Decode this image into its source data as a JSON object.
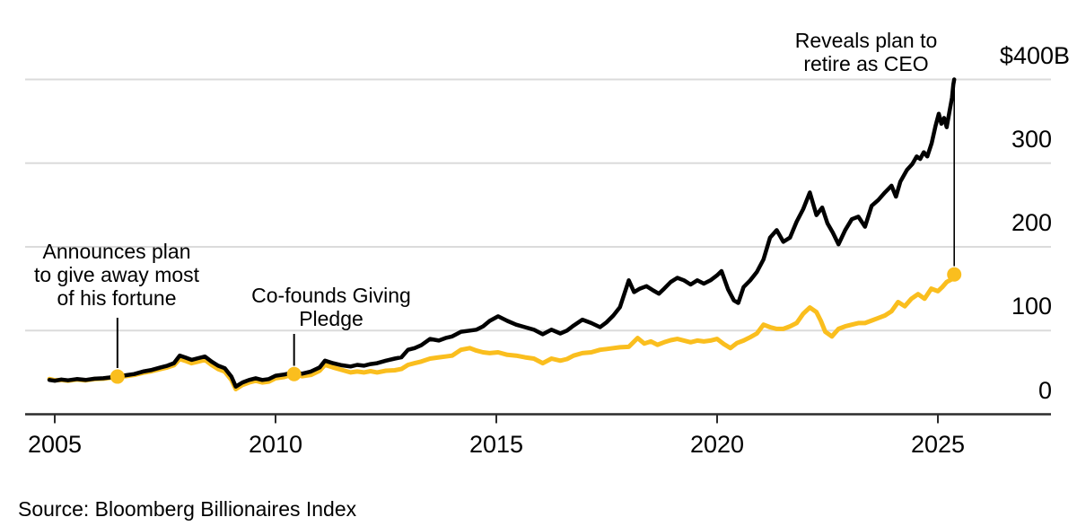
{
  "chart_data": {
    "type": "line",
    "title": "",
    "source": "Source: Bloomberg Billionaires Index",
    "colors": {
      "gold": "#FABE1E",
      "black": "#000000",
      "grid": "#DBDBDB",
      "axis": "#2B2B2B"
    },
    "x_axis": {
      "ticks": [
        2005,
        2010,
        2015,
        2020,
        2025
      ],
      "labels": [
        "2005",
        "2010",
        "2015",
        "2020",
        "2025"
      ],
      "range": [
        2004.3,
        2027.6
      ]
    },
    "y_axis": {
      "unit": "$B",
      "ticks": [
        0,
        100,
        200,
        300,
        400
      ],
      "labels": [
        "0",
        "100",
        "200",
        "300",
        "$400B"
      ],
      "range": [
        0,
        400
      ]
    },
    "series": [
      {
        "id": "gold",
        "color": "#FABE1E",
        "points": [
          [
            2004.88,
            42
          ],
          [
            2005.0,
            40.5
          ],
          [
            2005.15,
            41
          ],
          [
            2005.3,
            40
          ],
          [
            2005.5,
            41.5
          ],
          [
            2005.7,
            40.5
          ],
          [
            2005.9,
            42
          ],
          [
            2006.1,
            42.5
          ],
          [
            2006.25,
            43.5
          ],
          [
            2006.42,
            45
          ],
          [
            2006.6,
            45.5
          ],
          [
            2006.8,
            47
          ],
          [
            2007.0,
            49.5
          ],
          [
            2007.2,
            51.5
          ],
          [
            2007.4,
            54
          ],
          [
            2007.55,
            56
          ],
          [
            2007.7,
            58.5
          ],
          [
            2007.83,
            66
          ],
          [
            2007.95,
            64
          ],
          [
            2008.1,
            61
          ],
          [
            2008.25,
            63
          ],
          [
            2008.4,
            65
          ],
          [
            2008.55,
            59
          ],
          [
            2008.7,
            54
          ],
          [
            2008.85,
            51
          ],
          [
            2009.0,
            41
          ],
          [
            2009.1,
            30
          ],
          [
            2009.25,
            35
          ],
          [
            2009.4,
            38
          ],
          [
            2009.55,
            40
          ],
          [
            2009.7,
            38
          ],
          [
            2009.85,
            39
          ],
          [
            2010.0,
            43
          ],
          [
            2010.2,
            44.5
          ],
          [
            2010.42,
            48
          ],
          [
            2010.6,
            45.5
          ],
          [
            2010.8,
            47
          ],
          [
            2011.0,
            52
          ],
          [
            2011.12,
            59
          ],
          [
            2011.3,
            56
          ],
          [
            2011.5,
            53
          ],
          [
            2011.7,
            50
          ],
          [
            2011.85,
            51
          ],
          [
            2012.0,
            50
          ],
          [
            2012.15,
            51.5
          ],
          [
            2012.3,
            50
          ],
          [
            2012.5,
            52
          ],
          [
            2012.7,
            52.5
          ],
          [
            2012.85,
            54
          ],
          [
            2013.0,
            59
          ],
          [
            2013.15,
            61
          ],
          [
            2013.3,
            63
          ],
          [
            2013.5,
            66.5
          ],
          [
            2013.7,
            68
          ],
          [
            2013.85,
            69
          ],
          [
            2014.0,
            70
          ],
          [
            2014.2,
            77
          ],
          [
            2014.4,
            79
          ],
          [
            2014.55,
            76
          ],
          [
            2014.7,
            74
          ],
          [
            2014.85,
            73
          ],
          [
            2015.04,
            74
          ],
          [
            2015.25,
            71
          ],
          [
            2015.45,
            70
          ],
          [
            2015.65,
            68
          ],
          [
            2015.85,
            66.5
          ],
          [
            2016.05,
            61
          ],
          [
            2016.25,
            66.5
          ],
          [
            2016.45,
            64
          ],
          [
            2016.6,
            66
          ],
          [
            2016.75,
            70
          ],
          [
            2016.95,
            73
          ],
          [
            2017.15,
            74
          ],
          [
            2017.35,
            77
          ],
          [
            2017.5,
            78
          ],
          [
            2017.65,
            79
          ],
          [
            2017.8,
            80
          ],
          [
            2018.0,
            80.5
          ],
          [
            2018.2,
            91
          ],
          [
            2018.35,
            84.5
          ],
          [
            2018.5,
            87
          ],
          [
            2018.65,
            83
          ],
          [
            2018.8,
            86
          ],
          [
            2018.95,
            88.5
          ],
          [
            2019.1,
            90
          ],
          [
            2019.25,
            88
          ],
          [
            2019.4,
            86
          ],
          [
            2019.55,
            88
          ],
          [
            2019.7,
            87
          ],
          [
            2019.85,
            88
          ],
          [
            2020.0,
            90
          ],
          [
            2020.15,
            84
          ],
          [
            2020.3,
            79
          ],
          [
            2020.45,
            85
          ],
          [
            2020.6,
            88
          ],
          [
            2020.75,
            92
          ],
          [
            2020.9,
            96.5
          ],
          [
            2021.05,
            107
          ],
          [
            2021.2,
            104
          ],
          [
            2021.35,
            102
          ],
          [
            2021.5,
            102
          ],
          [
            2021.65,
            105
          ],
          [
            2021.8,
            109
          ],
          [
            2021.95,
            120
          ],
          [
            2022.1,
            127.5
          ],
          [
            2022.25,
            122
          ],
          [
            2022.35,
            111.5
          ],
          [
            2022.45,
            98.5
          ],
          [
            2022.6,
            93
          ],
          [
            2022.75,
            102
          ],
          [
            2022.9,
            105
          ],
          [
            2023.05,
            107
          ],
          [
            2023.2,
            109
          ],
          [
            2023.35,
            109
          ],
          [
            2023.5,
            112
          ],
          [
            2023.65,
            115
          ],
          [
            2023.8,
            118
          ],
          [
            2023.95,
            123
          ],
          [
            2024.1,
            134
          ],
          [
            2024.25,
            129
          ],
          [
            2024.4,
            138
          ],
          [
            2024.55,
            143.5
          ],
          [
            2024.7,
            138
          ],
          [
            2024.85,
            150
          ],
          [
            2025.0,
            147
          ],
          [
            2025.1,
            152
          ],
          [
            2025.2,
            158
          ],
          [
            2025.3,
            161
          ],
          [
            2025.37,
            167
          ]
        ]
      },
      {
        "id": "black",
        "color": "#000000",
        "points": [
          [
            2004.88,
            41
          ],
          [
            2005.0,
            40
          ],
          [
            2005.15,
            41.5
          ],
          [
            2005.3,
            40.5
          ],
          [
            2005.5,
            42
          ],
          [
            2005.7,
            41
          ],
          [
            2005.9,
            42.5
          ],
          [
            2006.1,
            43
          ],
          [
            2006.25,
            44
          ],
          [
            2006.42,
            45.5
          ],
          [
            2006.6,
            46.5
          ],
          [
            2006.8,
            48
          ],
          [
            2007.0,
            51
          ],
          [
            2007.2,
            53
          ],
          [
            2007.4,
            56
          ],
          [
            2007.55,
            58
          ],
          [
            2007.7,
            61
          ],
          [
            2007.83,
            70
          ],
          [
            2007.95,
            68
          ],
          [
            2008.1,
            65
          ],
          [
            2008.25,
            67
          ],
          [
            2008.4,
            69
          ],
          [
            2008.55,
            63
          ],
          [
            2008.7,
            58
          ],
          [
            2008.85,
            55
          ],
          [
            2009.0,
            45
          ],
          [
            2009.1,
            33
          ],
          [
            2009.25,
            38
          ],
          [
            2009.4,
            41
          ],
          [
            2009.55,
            43
          ],
          [
            2009.7,
            41
          ],
          [
            2009.85,
            42
          ],
          [
            2010.0,
            46
          ],
          [
            2010.2,
            47.5
          ],
          [
            2010.42,
            50
          ],
          [
            2010.6,
            48.5
          ],
          [
            2010.8,
            51
          ],
          [
            2011.0,
            56
          ],
          [
            2011.12,
            64
          ],
          [
            2011.3,
            61
          ],
          [
            2011.5,
            58.5
          ],
          [
            2011.7,
            57
          ],
          [
            2011.85,
            59
          ],
          [
            2012.0,
            58
          ],
          [
            2012.15,
            60
          ],
          [
            2012.3,
            61
          ],
          [
            2012.5,
            64
          ],
          [
            2012.7,
            66.5
          ],
          [
            2012.85,
            68
          ],
          [
            2013.0,
            77
          ],
          [
            2013.15,
            79
          ],
          [
            2013.3,
            82.5
          ],
          [
            2013.5,
            90
          ],
          [
            2013.7,
            88
          ],
          [
            2013.85,
            91
          ],
          [
            2014.0,
            93
          ],
          [
            2014.2,
            98.5
          ],
          [
            2014.4,
            100
          ],
          [
            2014.55,
            101
          ],
          [
            2014.7,
            105
          ],
          [
            2014.85,
            111.5
          ],
          [
            2015.04,
            117
          ],
          [
            2015.25,
            111.5
          ],
          [
            2015.45,
            107
          ],
          [
            2015.65,
            104
          ],
          [
            2015.85,
            101
          ],
          [
            2016.05,
            95.5
          ],
          [
            2016.25,
            101
          ],
          [
            2016.45,
            96.5
          ],
          [
            2016.6,
            100
          ],
          [
            2016.75,
            106
          ],
          [
            2016.95,
            113
          ],
          [
            2017.15,
            109
          ],
          [
            2017.35,
            104
          ],
          [
            2017.5,
            110
          ],
          [
            2017.65,
            118
          ],
          [
            2017.8,
            128
          ],
          [
            2018.0,
            160
          ],
          [
            2018.12,
            146
          ],
          [
            2018.25,
            150
          ],
          [
            2018.4,
            153
          ],
          [
            2018.55,
            148
          ],
          [
            2018.68,
            144
          ],
          [
            2018.8,
            150
          ],
          [
            2018.95,
            158
          ],
          [
            2019.1,
            163
          ],
          [
            2019.25,
            160
          ],
          [
            2019.4,
            155
          ],
          [
            2019.55,
            160
          ],
          [
            2019.7,
            156
          ],
          [
            2019.85,
            160
          ],
          [
            2020.0,
            166
          ],
          [
            2020.1,
            171
          ],
          [
            2020.25,
            149
          ],
          [
            2020.38,
            136
          ],
          [
            2020.48,
            133
          ],
          [
            2020.6,
            152
          ],
          [
            2020.75,
            160
          ],
          [
            2020.9,
            170
          ],
          [
            2021.05,
            185
          ],
          [
            2021.2,
            211
          ],
          [
            2021.35,
            220
          ],
          [
            2021.5,
            206
          ],
          [
            2021.65,
            211
          ],
          [
            2021.8,
            230
          ],
          [
            2021.95,
            245
          ],
          [
            2022.1,
            265
          ],
          [
            2022.25,
            238
          ],
          [
            2022.38,
            247
          ],
          [
            2022.5,
            228
          ],
          [
            2022.62,
            217
          ],
          [
            2022.75,
            203
          ],
          [
            2022.9,
            220
          ],
          [
            2023.05,
            233
          ],
          [
            2023.2,
            236
          ],
          [
            2023.35,
            224
          ],
          [
            2023.5,
            249
          ],
          [
            2023.65,
            256
          ],
          [
            2023.8,
            265
          ],
          [
            2023.95,
            273
          ],
          [
            2024.05,
            260
          ],
          [
            2024.15,
            278
          ],
          [
            2024.3,
            292
          ],
          [
            2024.42,
            299
          ],
          [
            2024.52,
            308
          ],
          [
            2024.6,
            305
          ],
          [
            2024.68,
            313
          ],
          [
            2024.76,
            308
          ],
          [
            2024.86,
            324
          ],
          [
            2024.95,
            345
          ],
          [
            2025.02,
            359
          ],
          [
            2025.08,
            347
          ],
          [
            2025.14,
            354
          ],
          [
            2025.2,
            343
          ],
          [
            2025.26,
            361
          ],
          [
            2025.32,
            378
          ],
          [
            2025.35,
            394
          ],
          [
            2025.37,
            400
          ]
        ]
      }
    ],
    "annotations": [
      {
        "id": "give-away",
        "lines": [
          "Announces plan",
          "to give away most",
          "of his fortune"
        ],
        "marker": {
          "year": 2006.42,
          "value": 45,
          "series": "gold"
        }
      },
      {
        "id": "giving-pledge",
        "lines": [
          "Co-founds Giving",
          "Pledge"
        ],
        "marker": {
          "year": 2010.42,
          "value": 48,
          "series": "gold"
        }
      },
      {
        "id": "retire-ceo",
        "lines": [
          "Reveals plan to",
          "retire as CEO"
        ],
        "marker": {
          "year": 2025.37,
          "value": 167,
          "series": "gold"
        }
      }
    ]
  }
}
